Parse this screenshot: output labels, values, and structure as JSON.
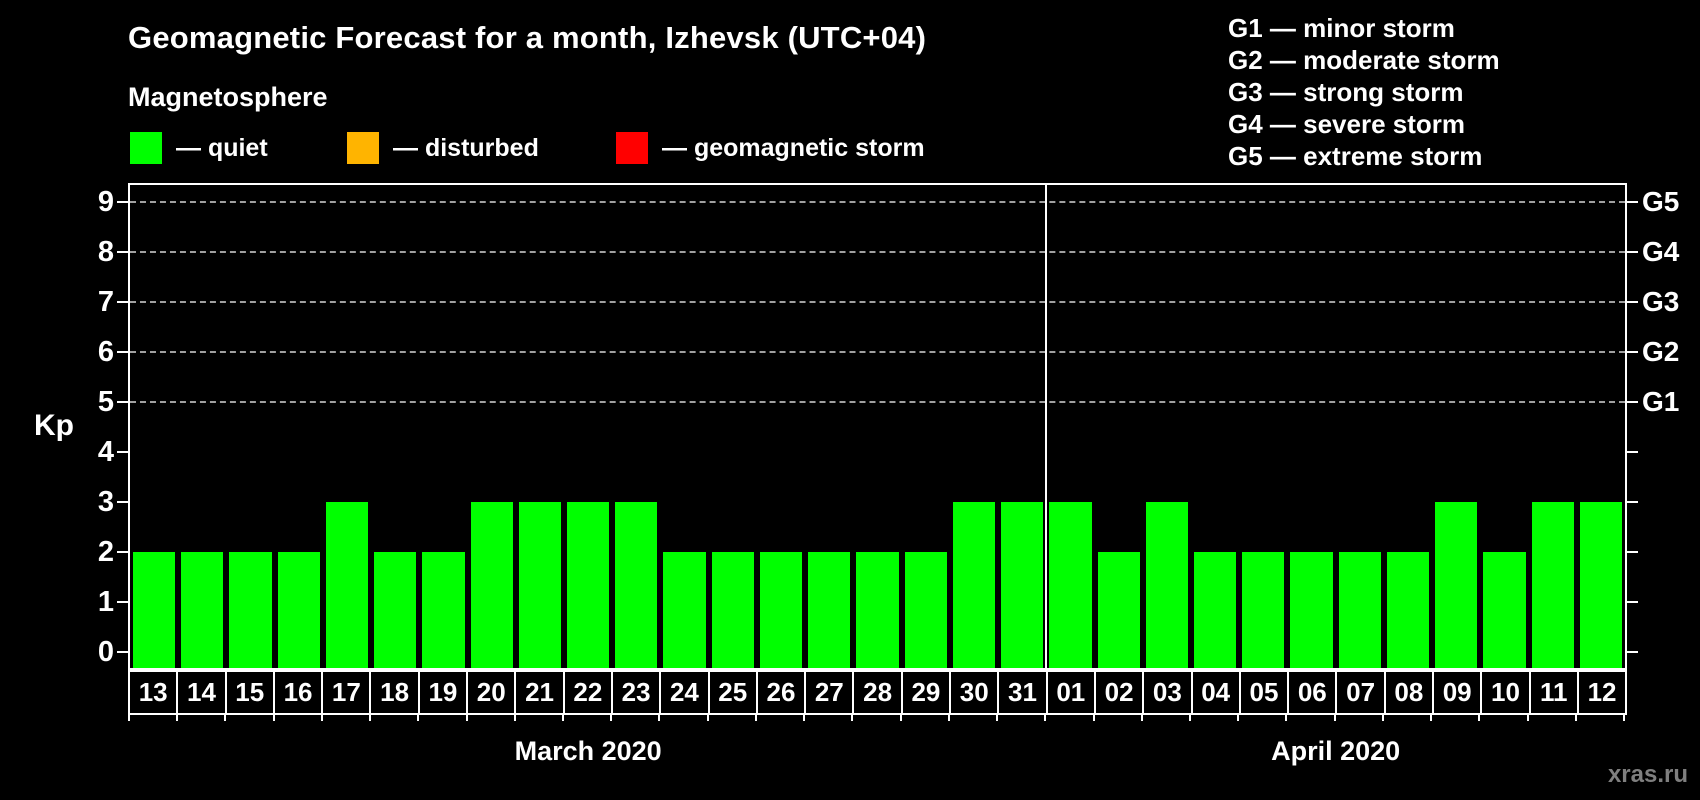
{
  "title": "Geomagnetic Forecast for a month, Izhevsk (UTC+04)",
  "subtitle": "Magnetosphere",
  "watermark": "xras.ru",
  "legend": {
    "items": [
      {
        "name": "quiet",
        "label": "— quiet",
        "color": "#00ff00"
      },
      {
        "name": "disturbed",
        "label": "— disturbed",
        "color": "#ffb400"
      },
      {
        "name": "storm",
        "label": "— geomagnetic storm",
        "color": "#ff0000"
      }
    ]
  },
  "g_legend": [
    "G1 — minor storm",
    "G2 — moderate storm",
    "G3 — strong storm",
    "G4 — severe storm",
    "G5 — extreme storm"
  ],
  "chart_data": {
    "type": "bar",
    "title": "Geomagnetic Forecast for a month, Izhevsk (UTC+04)",
    "xlabel": "",
    "ylabel": "Kp",
    "ylim": [
      0,
      9
    ],
    "yticks": [
      0,
      1,
      2,
      3,
      4,
      5,
      6,
      7,
      8,
      9
    ],
    "gridlines_at_kp": [
      5,
      6,
      7,
      8,
      9
    ],
    "grid": "dashed-horizontal",
    "legend_position": "top",
    "right_axis": [
      {
        "label": "G1",
        "kp": 5
      },
      {
        "label": "G2",
        "kp": 6
      },
      {
        "label": "G3",
        "kp": 7
      },
      {
        "label": "G4",
        "kp": 8
      },
      {
        "label": "G5",
        "kp": 9
      }
    ],
    "bar_color": "#00ff00",
    "bar_status": "quiet",
    "categories": [
      "13",
      "14",
      "15",
      "16",
      "17",
      "18",
      "19",
      "20",
      "21",
      "22",
      "23",
      "24",
      "25",
      "26",
      "27",
      "28",
      "29",
      "30",
      "31",
      "01",
      "02",
      "03",
      "04",
      "05",
      "06",
      "07",
      "08",
      "09",
      "10",
      "11",
      "12"
    ],
    "values": [
      2,
      2,
      2,
      2,
      3,
      2,
      2,
      3,
      3,
      3,
      3,
      2,
      2,
      2,
      2,
      2,
      2,
      3,
      3,
      3,
      2,
      3,
      2,
      2,
      2,
      2,
      2,
      3,
      2,
      3,
      3
    ],
    "months": [
      {
        "label": "March 2020",
        "days": 19
      },
      {
        "label": "April 2020",
        "days": 12
      }
    ]
  }
}
